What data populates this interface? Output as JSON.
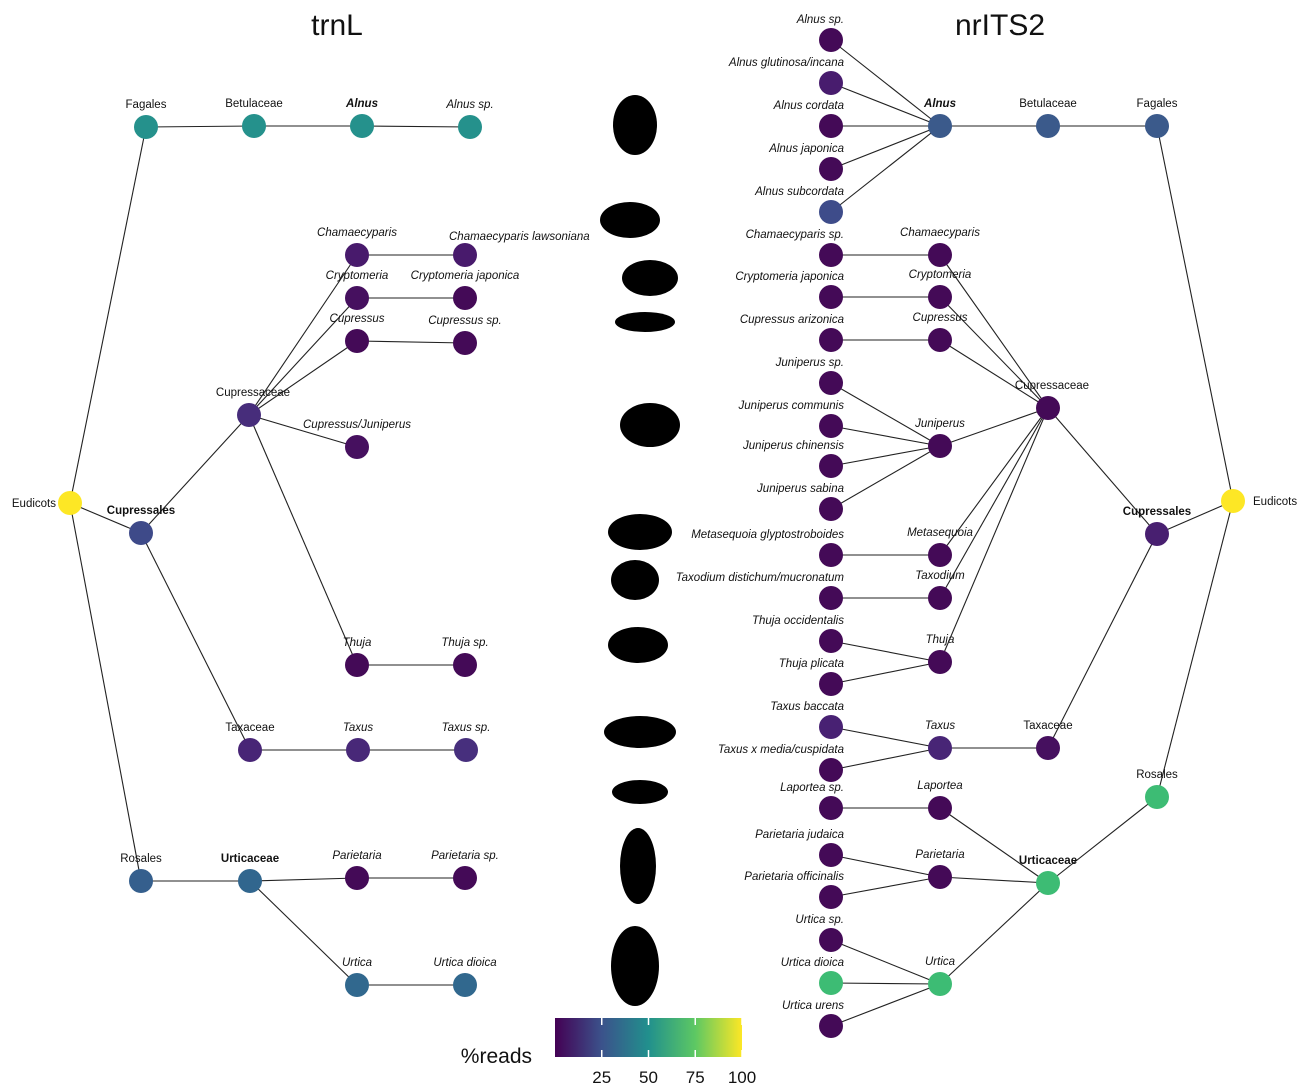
{
  "left_title": "trnL",
  "right_title": "nrITS2",
  "nodes": [
    {
      "label": "Eudicots",
      "color": "#fde725"
    },
    {
      "label": "Fagales",
      "color": "#25918c"
    },
    {
      "label": "Betulaceae",
      "color": "#25918c"
    },
    {
      "label": "Alnus",
      "color": "#25918c",
      "italic": true,
      "bold": true
    },
    {
      "label": "Alnus sp.",
      "color": "#25918c",
      "italic": true
    },
    {
      "label": "Cupressales",
      "color": "#3e4a89",
      "bold": true
    },
    {
      "label": "Cupressaceae",
      "color": "#472d7b"
    },
    {
      "label": "Chamaecyparis",
      "color": "#481a6c",
      "italic": true
    },
    {
      "label": "Chamaecyparis lawsoniana",
      "color": "#481a6c",
      "italic": true
    },
    {
      "label": "Cryptomeria",
      "color": "#46105f",
      "italic": true
    },
    {
      "label": "Cryptomeria japonica",
      "color": "#440a57",
      "italic": true
    },
    {
      "label": "Cupressus",
      "color": "#440a57",
      "italic": true
    },
    {
      "label": "Cupressus sp.",
      "color": "#440a57",
      "italic": true
    },
    {
      "label": "Cupressus/Juniperus",
      "color": "#46105f",
      "italic": true
    },
    {
      "label": "Thuja",
      "color": "#440a57",
      "italic": true
    },
    {
      "label": "Thuja sp.",
      "color": "#440a57",
      "italic": true
    },
    {
      "label": "Taxaceae",
      "color": "#482576"
    },
    {
      "label": "Taxus",
      "color": "#482878",
      "italic": true
    },
    {
      "label": "Taxus sp.",
      "color": "#472f7d",
      "italic": true
    },
    {
      "label": "Rosales",
      "color": "#355f8d"
    },
    {
      "label": "Urticaceae",
      "color": "#31668e",
      "bold": true
    },
    {
      "label": "Parietaria",
      "color": "#440a57",
      "italic": true
    },
    {
      "label": "Parietaria sp.",
      "color": "#440a57",
      "italic": true
    },
    {
      "label": "Urtica",
      "color": "#31688e",
      "italic": true
    },
    {
      "label": "Urtica dioica",
      "color": "#31688e",
      "italic": true
    },
    {
      "label": "Alnus sp.",
      "color": "#440a57",
      "italic": true
    },
    {
      "label": "Alnus glutinosa/incana",
      "color": "#481c6e",
      "italic": true
    },
    {
      "label": "Alnus cordata",
      "color": "#440a57",
      "italic": true
    },
    {
      "label": "Alnus japonica",
      "color": "#440a57",
      "italic": true
    },
    {
      "label": "Alnus subcordata",
      "color": "#3e4c8a",
      "italic": true
    },
    {
      "label": "Alnus",
      "color": "#3b5a8b",
      "italic": true,
      "bold": true
    },
    {
      "label": "Betulaceae",
      "color": "#3b5a8b"
    },
    {
      "label": "Fagales",
      "color": "#3b5a8b"
    },
    {
      "label": "Chamaecyparis sp.",
      "color": "#440a57",
      "italic": true
    },
    {
      "label": "Chamaecyparis",
      "color": "#440a57",
      "italic": true
    },
    {
      "label": "Cryptomeria japonica",
      "color": "#440a57",
      "italic": true
    },
    {
      "label": "Cryptomeria",
      "color": "#440a57",
      "italic": true
    },
    {
      "label": "Cupressus arizonica",
      "color": "#440a57",
      "italic": true
    },
    {
      "label": "Cupressus",
      "color": "#440a57",
      "italic": true
    },
    {
      "label": "Juniperus sp.",
      "color": "#440a57",
      "italic": true
    },
    {
      "label": "Juniperus communis",
      "color": "#440a57",
      "italic": true
    },
    {
      "label": "Juniperus chinensis",
      "color": "#440a57",
      "italic": true
    },
    {
      "label": "Juniperus sabina",
      "color": "#440a57",
      "italic": true
    },
    {
      "label": "Juniperus",
      "color": "#440a57",
      "italic": true
    },
    {
      "label": "Cupressaceae",
      "color": "#440a57"
    },
    {
      "label": "Metasequoia glyptostroboides",
      "color": "#440a57",
      "italic": true
    },
    {
      "label": "Metasequoia",
      "color": "#440a57",
      "italic": true
    },
    {
      "label": "Taxodium distichum/mucronatum",
      "color": "#440a57",
      "italic": true
    },
    {
      "label": "Taxodium",
      "color": "#440a57",
      "italic": true
    },
    {
      "label": "Thuja occidentalis",
      "color": "#440a57",
      "italic": true
    },
    {
      "label": "Thuja plicata",
      "color": "#440a57",
      "italic": true
    },
    {
      "label": "Thuja",
      "color": "#440a57",
      "italic": true
    },
    {
      "label": "Taxus baccata",
      "color": "#482173",
      "italic": true
    },
    {
      "label": "Taxus x media/cuspidata",
      "color": "#440a57",
      "italic": true
    },
    {
      "label": "Taxus",
      "color": "#482576",
      "italic": true
    },
    {
      "label": "Taxaceae",
      "color": "#46105f"
    },
    {
      "label": "Laportea sp.",
      "color": "#440a57",
      "italic": true
    },
    {
      "label": "Laportea",
      "color": "#440a57",
      "italic": true
    },
    {
      "label": "Parietaria judaica",
      "color": "#440a57",
      "italic": true
    },
    {
      "label": "Parietaria officinalis",
      "color": "#440a57",
      "italic": true
    },
    {
      "label": "Parietaria",
      "color": "#440a57",
      "italic": true
    },
    {
      "label": "Urticaceae",
      "color": "#3dbc74",
      "bold": true
    },
    {
      "label": "Urtica sp.",
      "color": "#440a57",
      "italic": true
    },
    {
      "label": "Urtica dioica",
      "color": "#3dbc74",
      "italic": true
    },
    {
      "label": "Urtica urens",
      "color": "#440a57",
      "italic": true
    },
    {
      "label": "Urtica",
      "color": "#3dbc74",
      "italic": true
    },
    {
      "label": "Cupressales",
      "color": "#481f70",
      "bold": true
    },
    {
      "label": "Rosales",
      "color": "#3dbc74"
    },
    {
      "label": "Eudicots",
      "color": "#fde725"
    }
  ],
  "colorbar": {
    "label": "%reads",
    "range": [
      0,
      100
    ],
    "ticks": [
      25,
      50,
      75,
      100
    ]
  }
}
